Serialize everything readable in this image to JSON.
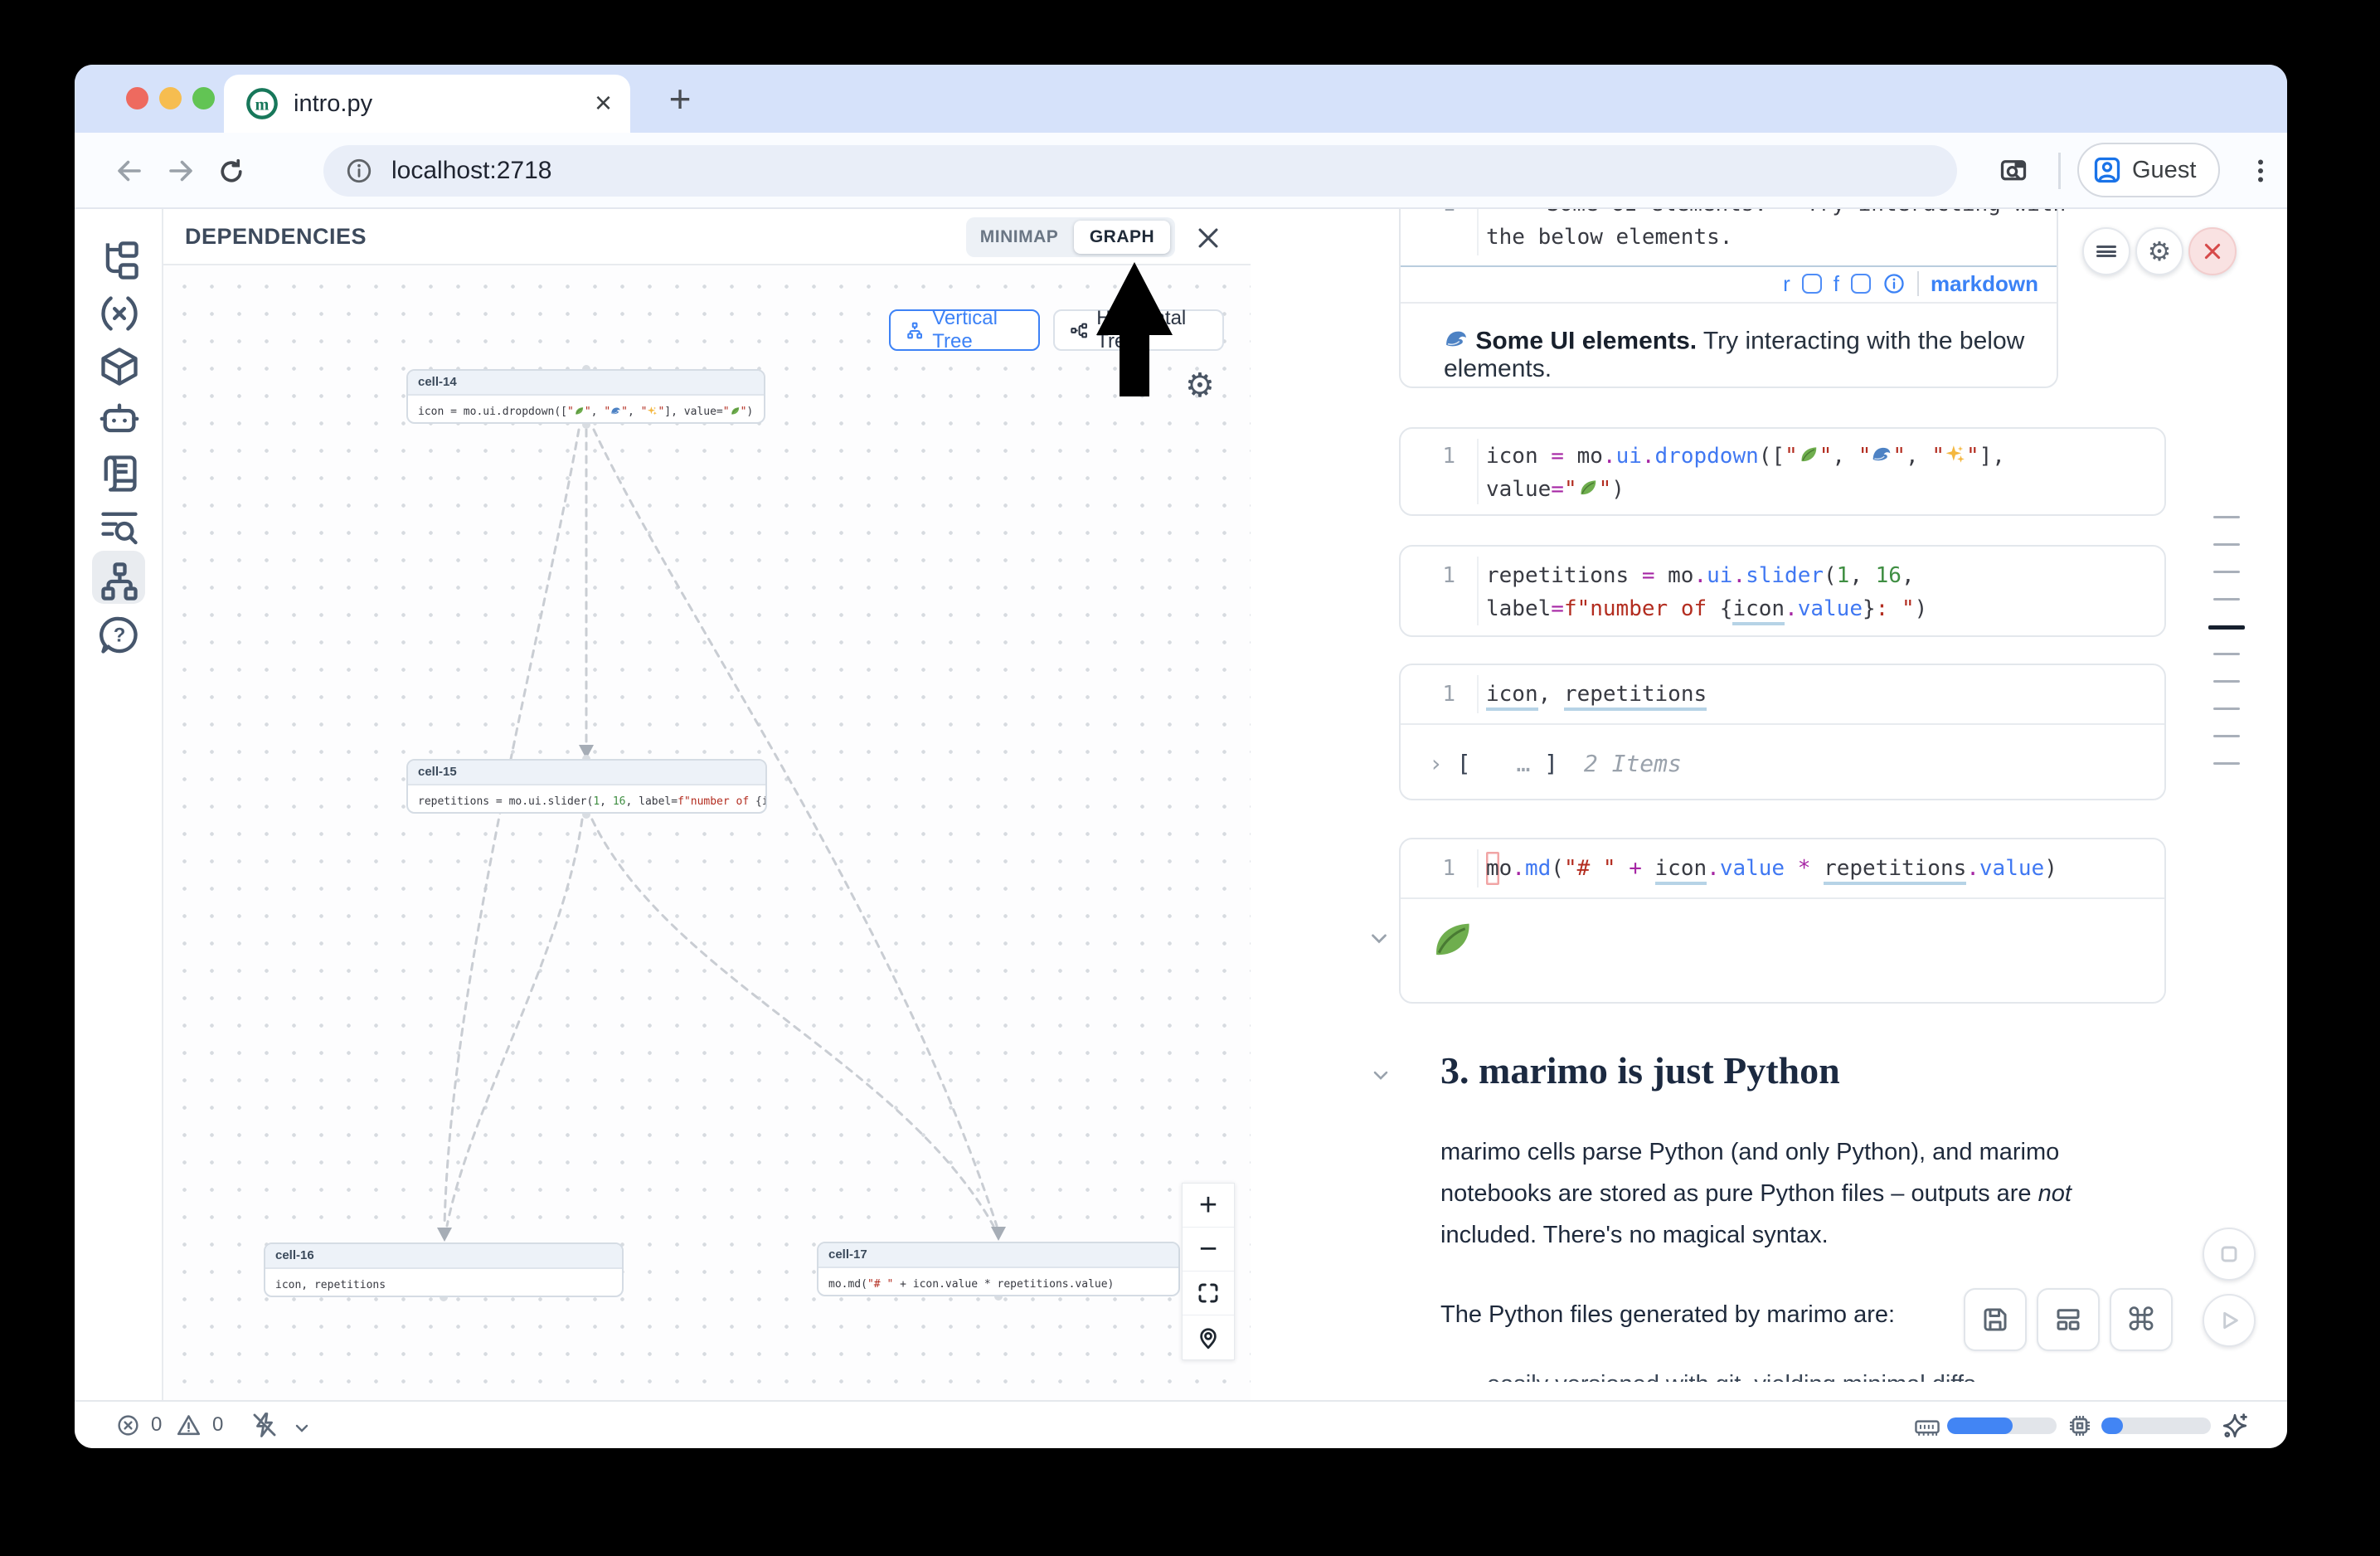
{
  "window": {
    "tab_title": "intro.py",
    "url": "localhost:2718",
    "guest": "Guest"
  },
  "rail": {
    "icons": [
      "file-tree",
      "variables",
      "packages",
      "ai-chat",
      "snippets",
      "outline-search",
      "dependency-graph",
      "help"
    ],
    "active": "dependency-graph"
  },
  "dep": {
    "title": "DEPENDENCIES",
    "minimap_label": "MINIMAP",
    "graph_label": "GRAPH",
    "active_tab": "GRAPH",
    "vertical_tree": "Vertical Tree",
    "horizontal_tree": "Horizontal Tree",
    "zoom_controls": [
      "zoom-in",
      "zoom-out",
      "fit-view",
      "locate"
    ],
    "nodes": [
      {
        "id": "cell-14",
        "code": [
          [
            {
              "t": "icon = mo.ui.dropdown([",
              "c": "p"
            },
            {
              "t": "\"",
              "c": "str"
            },
            {
              "e": "leaf",
              "alt": "🍃"
            },
            {
              "t": "\"",
              "c": "str"
            },
            {
              "t": ", ",
              "c": "p"
            },
            {
              "t": "\"",
              "c": "str"
            },
            {
              "e": "wave",
              "alt": "🌊"
            },
            {
              "t": "\"",
              "c": "str"
            },
            {
              "t": ", ",
              "c": "p"
            },
            {
              "t": "\"",
              "c": "str"
            },
            {
              "e": "sparkles",
              "alt": "✨"
            },
            {
              "t": "\"",
              "c": "str"
            },
            {
              "t": "], value=",
              "c": "p"
            },
            {
              "t": "\"",
              "c": "str"
            },
            {
              "e": "leaf",
              "alt": "🍃"
            },
            {
              "t": "\"",
              "c": "str"
            },
            {
              "t": ")",
              "c": "p"
            }
          ]
        ]
      },
      {
        "id": "cell-15",
        "code": [
          [
            {
              "t": "repetitions = mo.ui.slider(",
              "c": "p"
            },
            {
              "t": "1",
              "c": "num"
            },
            {
              "t": ", ",
              "c": "p"
            },
            {
              "t": "16",
              "c": "num"
            },
            {
              "t": ", label=",
              "c": "p"
            },
            {
              "t": "f\"number of ",
              "c": "str"
            },
            {
              "t": "{icon.val",
              "c": "p"
            }
          ]
        ]
      },
      {
        "id": "cell-16",
        "code": [
          [
            {
              "t": "icon, repetitions",
              "c": "p"
            }
          ]
        ]
      },
      {
        "id": "cell-17",
        "code": [
          [
            {
              "t": "mo.md(",
              "c": "p"
            },
            {
              "t": "\"# \"",
              "c": "str"
            },
            {
              "t": " + icon.value * repetitions.value)",
              "c": "p"
            }
          ]
        ]
      }
    ]
  },
  "notebook": {
    "md_cell": {
      "line_no": "1",
      "code": [
        [
          {
            "t": "**",
            "c": "p"
          },
          {
            "e": "wave",
            "alt": "🌊"
          },
          {
            "t": " Some UI elements.** Try interacting with",
            "c": "p"
          }
        ],
        [
          {
            "t": "the below elements.",
            "c": "p"
          }
        ]
      ],
      "toolbar": {
        "r": "r",
        "f": "f",
        "mode": "markdown"
      },
      "output": {
        "bold": "Some UI elements.",
        "rest": " Try interacting with the below elements."
      }
    },
    "dropdown_cell": {
      "line_no": "1",
      "code": [
        [
          {
            "t": "icon ",
            "c": "p"
          },
          {
            "t": "=",
            "c": "op"
          },
          {
            "t": " mo",
            "c": "p"
          },
          {
            "t": ".",
            "c": "op"
          },
          {
            "t": "ui",
            "c": "fn"
          },
          {
            "t": ".",
            "c": "op"
          },
          {
            "t": "dropdown",
            "c": "fn"
          },
          {
            "t": "([",
            "c": "p"
          },
          {
            "t": "\"",
            "c": "str"
          },
          {
            "e": "leaf",
            "alt": "🍃"
          },
          {
            "t": "\"",
            "c": "str"
          },
          {
            "t": ", ",
            "c": "p"
          },
          {
            "t": "\"",
            "c": "str"
          },
          {
            "e": "wave",
            "alt": "🌊"
          },
          {
            "t": "\"",
            "c": "str"
          },
          {
            "t": ", ",
            "c": "p"
          },
          {
            "t": "\"",
            "c": "str"
          },
          {
            "e": "sparkles",
            "alt": "✨"
          },
          {
            "t": "\"",
            "c": "str"
          },
          {
            "t": "],",
            "c": "p"
          }
        ],
        [
          {
            "t": "value",
            "c": "p"
          },
          {
            "t": "=",
            "c": "op"
          },
          {
            "t": "\"",
            "c": "str"
          },
          {
            "e": "leaf",
            "alt": "🍃"
          },
          {
            "t": "\"",
            "c": "str"
          },
          {
            "t": ")",
            "c": "p"
          }
        ]
      ]
    },
    "slider_cell": {
      "line_no": "1",
      "code": [
        [
          {
            "t": "repetitions ",
            "c": "p"
          },
          {
            "t": "=",
            "c": "op"
          },
          {
            "t": " mo",
            "c": "p"
          },
          {
            "t": ".",
            "c": "op"
          },
          {
            "t": "ui",
            "c": "fn"
          },
          {
            "t": ".",
            "c": "op"
          },
          {
            "t": "slider",
            "c": "fn"
          },
          {
            "t": "(",
            "c": "p"
          },
          {
            "t": "1",
            "c": "num"
          },
          {
            "t": ", ",
            "c": "p"
          },
          {
            "t": "16",
            "c": "num"
          },
          {
            "t": ",",
            "c": "p"
          }
        ],
        [
          {
            "t": "label",
            "c": "p"
          },
          {
            "t": "=",
            "c": "op"
          },
          {
            "t": "f\"number of ",
            "c": "str"
          },
          {
            "t": "{",
            "c": "p"
          },
          {
            "t": "icon",
            "c": "p und"
          },
          {
            "t": ".",
            "c": "op"
          },
          {
            "t": "value",
            "c": "fn"
          },
          {
            "t": "}",
            "c": "p"
          },
          {
            "t": ": \"",
            "c": "str"
          },
          {
            "t": ")",
            "c": "p"
          }
        ]
      ]
    },
    "expr_cell": {
      "line_no": "1",
      "code": [
        [
          {
            "t": "icon",
            "c": "p und"
          },
          {
            "t": ", ",
            "c": "p"
          },
          {
            "t": "repetitions",
            "c": "p und"
          }
        ]
      ],
      "output": {
        "expander": "›",
        "open": "[",
        "dots": "…",
        "close": "]",
        "count": "2 Items"
      }
    },
    "mdout_cell": {
      "line_no": "1",
      "code": [
        [
          {
            "t": "m",
            "c": "p cur"
          },
          {
            "t": "o",
            "c": "p"
          },
          {
            "t": ".",
            "c": "op"
          },
          {
            "t": "md",
            "c": "fn"
          },
          {
            "t": "(",
            "c": "p"
          },
          {
            "t": "\"# \"",
            "c": "str"
          },
          {
            "t": " + ",
            "c": "op"
          },
          {
            "t": "icon",
            "c": "p und"
          },
          {
            "t": ".",
            "c": "op"
          },
          {
            "t": "value",
            "c": "fn"
          },
          {
            "t": " * ",
            "c": "op"
          },
          {
            "t": "repetitions",
            "c": "p und"
          },
          {
            "t": ".",
            "c": "op"
          },
          {
            "t": "value",
            "c": "fn"
          },
          {
            "t": ")",
            "c": "p"
          }
        ]
      ],
      "output_emoji": "leaf"
    },
    "section": {
      "heading": "3. marimo is just Python",
      "p1_l1": "marimo cells parse Python (and only Python), and marimo",
      "p1_l2": "notebooks are stored as pure Python files – outputs are ",
      "p1_em": "not",
      "p1_l3": "included. There's no magical syntax.",
      "p2": "The Python files generated by marimo are:",
      "truncated": "easily versioned with git, yielding minimal diffs"
    },
    "scroll_marks": {
      "count": 10,
      "active_index": 4
    }
  },
  "status": {
    "errors": "0",
    "warnings": "0",
    "memory_pct": 60,
    "cpu_pct": 20
  },
  "colors": {
    "accent_blue": "#3d82f6",
    "progress_blue": "#4285f4",
    "tabstrip": "#d6e2fa",
    "marimo_green": "#17775a",
    "error_red": "#d64949"
  }
}
